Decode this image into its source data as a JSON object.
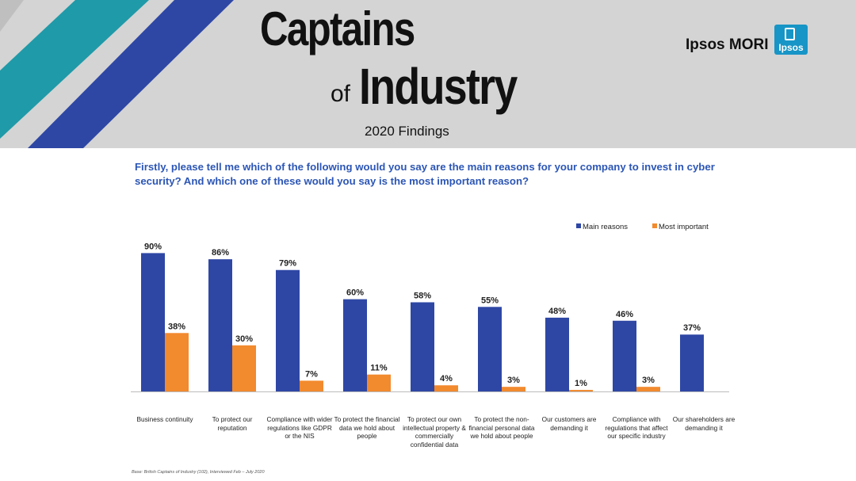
{
  "header": {
    "title_line1": "Captains",
    "title_of": "of",
    "title_line2": "Industry",
    "subtitle": "2020 Findings",
    "brand_text": "Ipsos MORI",
    "logo_text": "Ipsos"
  },
  "question": "Firstly, please tell me which of the following would you say are the main reasons for your company to invest in cyber security? And which one of these would you say is the most important reason?",
  "footnote": "Base: British Captains of Industry (102), Interviewed Feb – July 2020",
  "colors": {
    "main": "#2e47a5",
    "most": "#f28a2e",
    "stripe_teal": "#1f9aa8",
    "stripe_blue": "#2e47a5"
  },
  "chart_data": {
    "type": "bar",
    "categories": [
      "Business continuity",
      "To protect our reputation",
      "Compliance with wider regulations like GDPR or the NIS",
      "To protect the financial data we hold about people",
      "To protect our own intellectual property & commercially confidential data",
      "To protect the non-financial personal data we hold about people",
      "Our customers are demanding it",
      "Compliance with regulations that affect our specific industry",
      "Our shareholders are demanding it"
    ],
    "series": [
      {
        "name": "Main reasons",
        "values": [
          90,
          86,
          79,
          60,
          58,
          55,
          48,
          46,
          37
        ],
        "labels": [
          "90%",
          "86%",
          "79%",
          "60%",
          "58%",
          "55%",
          "48%",
          "46%",
          "37%"
        ]
      },
      {
        "name": "Most important",
        "values": [
          38,
          30,
          7,
          11,
          4,
          3,
          1,
          3,
          null
        ],
        "labels": [
          "38%",
          "30%",
          "7%",
          "11%",
          "4%",
          "3%",
          "1%",
          "3%",
          ""
        ]
      }
    ],
    "ylim": [
      0,
      100
    ],
    "grid": false,
    "legend": "top-right"
  }
}
